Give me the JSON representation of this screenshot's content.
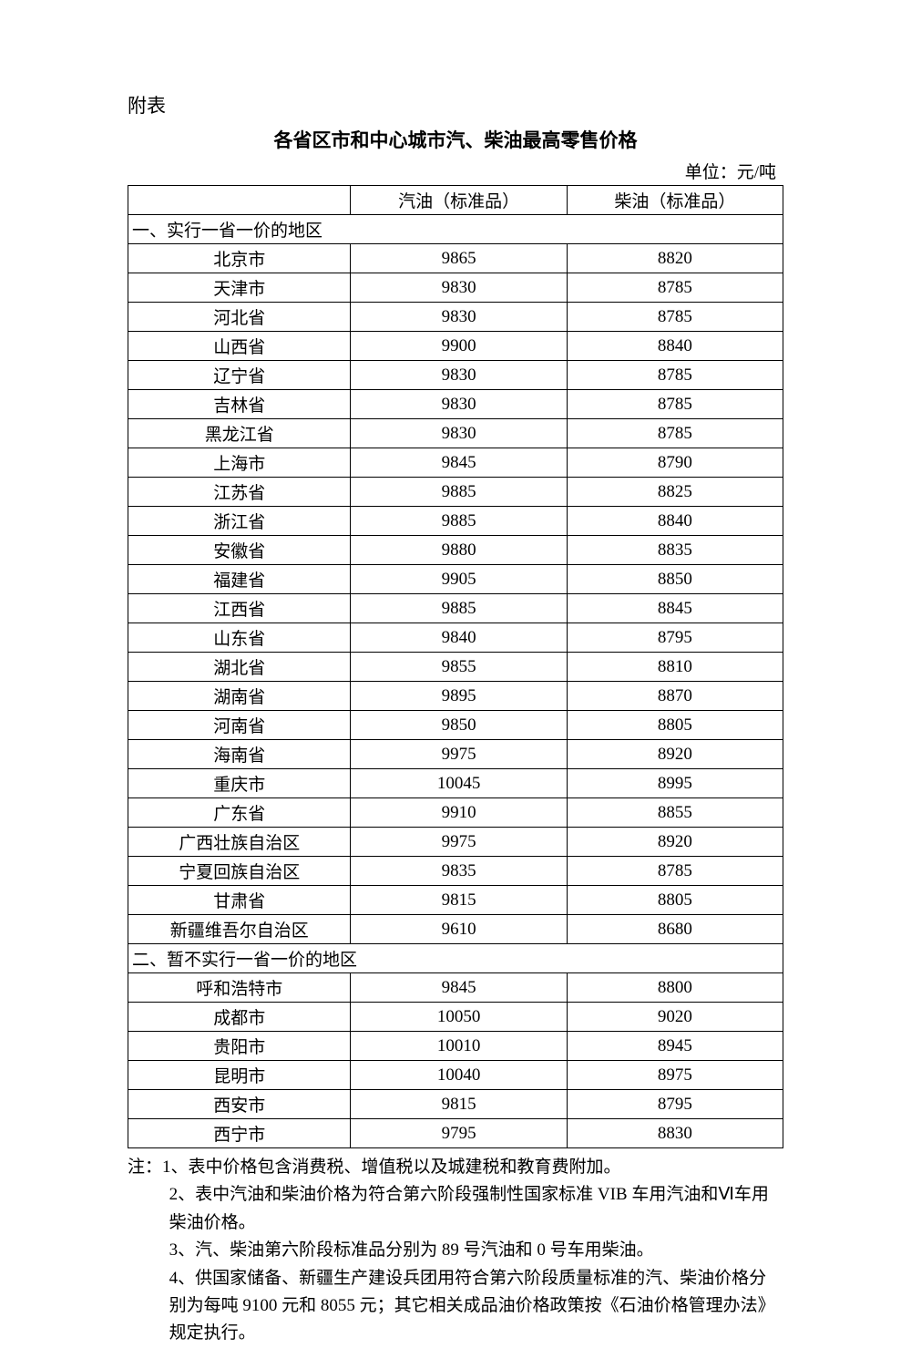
{
  "attachment_label": "附表",
  "title": "各省区市和中心城市汽、柴油最高零售价格",
  "unit": "单位：元/吨",
  "headers": {
    "region": "",
    "gasoline": "汽油（标准品）",
    "diesel": "柴油（标准品）"
  },
  "section1": {
    "title": "一、实行一省一价的地区",
    "rows": [
      {
        "region": "北京市",
        "gasoline": "9865",
        "diesel": "8820"
      },
      {
        "region": "天津市",
        "gasoline": "9830",
        "diesel": "8785"
      },
      {
        "region": "河北省",
        "gasoline": "9830",
        "diesel": "8785"
      },
      {
        "region": "山西省",
        "gasoline": "9900",
        "diesel": "8840"
      },
      {
        "region": "辽宁省",
        "gasoline": "9830",
        "diesel": "8785"
      },
      {
        "region": "吉林省",
        "gasoline": "9830",
        "diesel": "8785"
      },
      {
        "region": "黑龙江省",
        "gasoline": "9830",
        "diesel": "8785"
      },
      {
        "region": "上海市",
        "gasoline": "9845",
        "diesel": "8790"
      },
      {
        "region": "江苏省",
        "gasoline": "9885",
        "diesel": "8825"
      },
      {
        "region": "浙江省",
        "gasoline": "9885",
        "diesel": "8840"
      },
      {
        "region": "安徽省",
        "gasoline": "9880",
        "diesel": "8835"
      },
      {
        "region": "福建省",
        "gasoline": "9905",
        "diesel": "8850"
      },
      {
        "region": "江西省",
        "gasoline": "9885",
        "diesel": "8845"
      },
      {
        "region": "山东省",
        "gasoline": "9840",
        "diesel": "8795"
      },
      {
        "region": "湖北省",
        "gasoline": "9855",
        "diesel": "8810"
      },
      {
        "region": "湖南省",
        "gasoline": "9895",
        "diesel": "8870"
      },
      {
        "region": "河南省",
        "gasoline": "9850",
        "diesel": "8805"
      },
      {
        "region": "海南省",
        "gasoline": "9975",
        "diesel": "8920"
      },
      {
        "region": "重庆市",
        "gasoline": "10045",
        "diesel": "8995"
      },
      {
        "region": "广东省",
        "gasoline": "9910",
        "diesel": "8855"
      },
      {
        "region": "广西壮族自治区",
        "gasoline": "9975",
        "diesel": "8920"
      },
      {
        "region": "宁夏回族自治区",
        "gasoline": "9835",
        "diesel": "8785"
      },
      {
        "region": "甘肃省",
        "gasoline": "9815",
        "diesel": "8805"
      },
      {
        "region": "新疆维吾尔自治区",
        "gasoline": "9610",
        "diesel": "8680"
      }
    ]
  },
  "section2": {
    "title": "二、暂不实行一省一价的地区",
    "rows": [
      {
        "region": "呼和浩特市",
        "gasoline": "9845",
        "diesel": "8800"
      },
      {
        "region": "成都市",
        "gasoline": "10050",
        "diesel": "9020"
      },
      {
        "region": "贵阳市",
        "gasoline": "10010",
        "diesel": "8945"
      },
      {
        "region": "昆明市",
        "gasoline": "10040",
        "diesel": "8975"
      },
      {
        "region": "西安市",
        "gasoline": "9815",
        "diesel": "8795"
      },
      {
        "region": "西宁市",
        "gasoline": "9795",
        "diesel": "8830"
      }
    ]
  },
  "notes": {
    "prefix": "注：",
    "items": [
      "1、表中价格包含消费税、增值税以及城建税和教育费附加。",
      "2、表中汽油和柴油价格为符合第六阶段强制性国家标准 VIB 车用汽油和Ⅵ车用柴油价格。",
      "3、汽、柴油第六阶段标准品分别为 89 号汽油和 0 号车用柴油。",
      "4、供国家储备、新疆生产建设兵团用符合第六阶段质量标准的汽、柴油价格分别为每吨 9100 元和 8055 元；其它相关成品油价格政策按《石油价格管理办法》规定执行。"
    ]
  }
}
